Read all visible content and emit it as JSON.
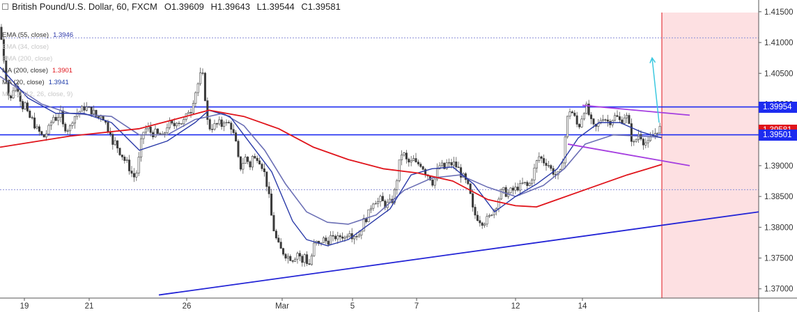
{
  "header": {
    "symbol": "British Pound/U.S. Dollar, 60, FXCM",
    "open": "O1.39609",
    "high": "H1.39643",
    "low": "L1.39544",
    "close": "C1.39581"
  },
  "legend": [
    {
      "name": "EMA (55, close)",
      "value": "1.3946",
      "color": "#2a35a8",
      "faded": false
    },
    {
      "name": "EMA (34, close)",
      "value": "",
      "color": "#cccccc",
      "faded": true
    },
    {
      "name": "EMA (200, close)",
      "value": "",
      "color": "#cccccc",
      "faded": true
    },
    {
      "name": "MA (200, close)",
      "value": "1.3901",
      "color": "#e0141b",
      "faded": false
    },
    {
      "name": "MA (20, close)",
      "value": "1.3941",
      "color": "#1c3aa8",
      "faded": false
    },
    {
      "name": "MACD (12, 26, close, 9)",
      "value": "",
      "color": "#cccccc",
      "faded": true
    }
  ],
  "price_tags": [
    {
      "label": "1.39954",
      "price": 1.39954,
      "color": "#1d2cf0"
    },
    {
      "label": "1.39581",
      "price": 1.39581,
      "color": "#e0141b"
    },
    {
      "label": "1.39501",
      "price": 1.39501,
      "color": "#1d2cf0"
    }
  ],
  "chart_data": {
    "type": "candlestick",
    "ylim": [
      1.3685,
      1.416
    ],
    "y_ticks": [
      "1.41500",
      "1.41000",
      "1.40500",
      "1.40000",
      "1.39500",
      "1.39000",
      "1.38500",
      "1.38000",
      "1.37500",
      "1.37000"
    ],
    "x_ticks": [
      "19",
      "21",
      "26",
      "Mar",
      "5",
      "7",
      "12",
      "14"
    ],
    "horizontal_lines": [
      1.39954,
      1.39501
    ],
    "dotted_levels": [
      1.41075,
      1.3861
    ],
    "close_path": [
      [
        0,
        1.4125
      ],
      [
        3,
        1.4095
      ],
      [
        8,
        1.405
      ],
      [
        14,
        1.4
      ],
      [
        20,
        1.403
      ],
      [
        26,
        1.4025
      ],
      [
        32,
        1.3995
      ],
      [
        36,
        1.4
      ],
      [
        40,
        1.398
      ],
      [
        46,
        1.3975
      ],
      [
        52,
        1.396
      ],
      [
        56,
        1.3955
      ],
      [
        62,
        1.3945
      ],
      [
        68,
        1.3955
      ],
      [
        72,
        1.3965
      ],
      [
        76,
        1.398
      ],
      [
        82,
        1.3975
      ],
      [
        86,
        1.399
      ],
      [
        90,
        1.3965
      ],
      [
        96,
        1.396
      ],
      [
        100,
        1.396
      ],
      [
        104,
        1.3975
      ],
      [
        110,
        1.3985
      ],
      [
        116,
        1.399
      ],
      [
        122,
        1.3995
      ],
      [
        130,
        1.399
      ],
      [
        136,
        1.3985
      ],
      [
        140,
        1.3975
      ],
      [
        144,
        1.3985
      ],
      [
        150,
        1.3975
      ],
      [
        154,
        1.396
      ],
      [
        158,
        1.396
      ],
      [
        162,
        1.393
      ],
      [
        166,
        1.394
      ],
      [
        170,
        1.3925
      ],
      [
        174,
        1.392
      ],
      [
        178,
        1.391
      ],
      [
        182,
        1.3905
      ],
      [
        186,
        1.3895
      ],
      [
        190,
        1.3885
      ],
      [
        194,
        1.388
      ],
      [
        198,
        1.39
      ],
      [
        202,
        1.3935
      ],
      [
        206,
        1.3955
      ],
      [
        210,
        1.396
      ],
      [
        214,
        1.396
      ],
      [
        218,
        1.395
      ],
      [
        222,
        1.3955
      ],
      [
        226,
        1.395
      ],
      [
        230,
        1.395
      ],
      [
        234,
        1.3945
      ],
      [
        238,
        1.396
      ],
      [
        242,
        1.397
      ],
      [
        246,
        1.3965
      ],
      [
        250,
        1.3965
      ],
      [
        254,
        1.3975
      ],
      [
        258,
        1.397
      ],
      [
        262,
        1.397
      ],
      [
        266,
        1.3975
      ],
      [
        270,
        1.399
      ],
      [
        274,
        1.399
      ],
      [
        278,
        1.401
      ],
      [
        282,
        1.4025
      ],
      [
        286,
        1.404
      ],
      [
        290,
        1.4055
      ],
      [
        294,
        1.4015
      ],
      [
        298,
        1.397
      ],
      [
        302,
        1.396
      ],
      [
        306,
        1.3965
      ],
      [
        310,
        1.3965
      ],
      [
        314,
        1.397
      ],
      [
        318,
        1.3965
      ],
      [
        322,
        1.3975
      ],
      [
        326,
        1.3965
      ],
      [
        330,
        1.397
      ],
      [
        334,
        1.3955
      ],
      [
        338,
        1.394
      ],
      [
        342,
        1.391
      ],
      [
        346,
        1.3895
      ],
      [
        350,
        1.391
      ],
      [
        354,
        1.3915
      ],
      [
        358,
        1.3895
      ],
      [
        362,
        1.3915
      ],
      [
        366,
        1.391
      ],
      [
        370,
        1.3915
      ],
      [
        374,
        1.3905
      ],
      [
        378,
        1.3895
      ],
      [
        382,
        1.3875
      ],
      [
        386,
        1.385
      ],
      [
        390,
        1.3815
      ],
      [
        394,
        1.379
      ],
      [
        398,
        1.3775
      ],
      [
        402,
        1.3765
      ],
      [
        406,
        1.376
      ],
      [
        410,
        1.3755
      ],
      [
        414,
        1.3752
      ],
      [
        418,
        1.375
      ],
      [
        422,
        1.3748
      ],
      [
        426,
        1.376
      ],
      [
        430,
        1.3755
      ],
      [
        434,
        1.374
      ],
      [
        438,
        1.376
      ],
      [
        442,
        1.3735
      ],
      [
        446,
        1.3745
      ],
      [
        450,
        1.377
      ],
      [
        454,
        1.3775
      ],
      [
        458,
        1.377
      ],
      [
        462,
        1.378
      ],
      [
        466,
        1.378
      ],
      [
        470,
        1.3775
      ],
      [
        474,
        1.3785
      ],
      [
        478,
        1.378
      ],
      [
        482,
        1.3785
      ],
      [
        486,
        1.378
      ],
      [
        490,
        1.379
      ],
      [
        494,
        1.378
      ],
      [
        498,
        1.379
      ],
      [
        502,
        1.3795
      ],
      [
        506,
        1.3785
      ],
      [
        510,
        1.379
      ],
      [
        514,
        1.3785
      ],
      [
        518,
        1.3795
      ],
      [
        522,
        1.381
      ],
      [
        526,
        1.3815
      ],
      [
        530,
        1.3825
      ],
      [
        534,
        1.384
      ],
      [
        538,
        1.3845
      ],
      [
        542,
        1.384
      ],
      [
        546,
        1.3845
      ],
      [
        550,
        1.384
      ],
      [
        554,
        1.3835
      ],
      [
        558,
        1.384
      ],
      [
        562,
        1.384
      ],
      [
        566,
        1.3855
      ],
      [
        570,
        1.388
      ],
      [
        574,
        1.391
      ],
      [
        578,
        1.3925
      ],
      [
        582,
        1.391
      ],
      [
        586,
        1.3905
      ],
      [
        590,
        1.3905
      ],
      [
        594,
        1.391
      ],
      [
        598,
        1.39
      ],
      [
        602,
        1.3905
      ],
      [
        606,
        1.39
      ],
      [
        610,
        1.389
      ],
      [
        614,
        1.3885
      ],
      [
        618,
        1.388
      ],
      [
        622,
        1.387
      ],
      [
        626,
        1.3885
      ],
      [
        630,
        1.39
      ],
      [
        634,
        1.39
      ],
      [
        638,
        1.3895
      ],
      [
        642,
        1.3905
      ],
      [
        646,
        1.39
      ],
      [
        650,
        1.3905
      ],
      [
        654,
        1.39
      ],
      [
        658,
        1.3895
      ],
      [
        662,
        1.3885
      ],
      [
        666,
        1.388
      ],
      [
        670,
        1.387
      ],
      [
        674,
        1.386
      ],
      [
        678,
        1.383
      ],
      [
        682,
        1.382
      ],
      [
        686,
        1.3815
      ],
      [
        690,
        1.381
      ],
      [
        694,
        1.3808
      ],
      [
        698,
        1.3812
      ],
      [
        702,
        1.3815
      ],
      [
        706,
        1.3825
      ],
      [
        710,
        1.383
      ],
      [
        714,
        1.384
      ],
      [
        718,
        1.3855
      ],
      [
        722,
        1.386
      ],
      [
        726,
        1.3855
      ],
      [
        730,
        1.3855
      ],
      [
        734,
        1.386
      ],
      [
        738,
        1.386
      ],
      [
        742,
        1.3865
      ],
      [
        746,
        1.3865
      ],
      [
        750,
        1.387
      ],
      [
        754,
        1.387
      ],
      [
        758,
        1.3865
      ],
      [
        762,
        1.3875
      ],
      [
        766,
        1.389
      ],
      [
        770,
        1.3905
      ],
      [
        774,
        1.3915
      ],
      [
        778,
        1.391
      ],
      [
        782,
        1.3905
      ],
      [
        786,
        1.3905
      ],
      [
        790,
        1.3895
      ],
      [
        794,
        1.389
      ],
      [
        798,
        1.3885
      ],
      [
        802,
        1.3885
      ],
      [
        806,
        1.389
      ],
      [
        810,
        1.3935
      ],
      [
        814,
        1.3975
      ],
      [
        818,
        1.399
      ],
      [
        822,
        1.3985
      ],
      [
        826,
        1.3975
      ],
      [
        830,
        1.396
      ],
      [
        834,
        1.3975
      ],
      [
        838,
        1.399
      ],
      [
        842,
        1.3995
      ],
      [
        846,
        1.398
      ],
      [
        850,
        1.3965
      ],
      [
        854,
        1.396
      ],
      [
        858,
        1.3965
      ],
      [
        862,
        1.3975
      ],
      [
        866,
        1.398
      ],
      [
        870,
        1.3975
      ],
      [
        874,
        1.397
      ],
      [
        878,
        1.3975
      ],
      [
        882,
        1.398
      ],
      [
        886,
        1.3978
      ],
      [
        890,
        1.3972
      ],
      [
        894,
        1.3975
      ],
      [
        898,
        1.3985
      ],
      [
        902,
        1.397
      ],
      [
        906,
        1.3945
      ],
      [
        910,
        1.3935
      ],
      [
        914,
        1.3945
      ],
      [
        918,
        1.3955
      ],
      [
        922,
        1.394
      ],
      [
        926,
        1.3938
      ],
      [
        930,
        1.3935
      ],
      [
        934,
        1.3945
      ],
      [
        938,
        1.395
      ],
      [
        942,
        1.3955
      ],
      [
        946,
        1.3962
      ],
      [
        950,
        1.3958
      ]
    ],
    "ma200_path": [
      [
        0,
        1.393
      ],
      [
        100,
        1.3948
      ],
      [
        200,
        1.396
      ],
      [
        250,
        1.3975
      ],
      [
        300,
        1.399
      ],
      [
        350,
        1.398
      ],
      [
        400,
        1.396
      ],
      [
        450,
        1.393
      ],
      [
        500,
        1.391
      ],
      [
        550,
        1.3895
      ],
      [
        600,
        1.3888
      ],
      [
        650,
        1.3875
      ],
      [
        700,
        1.3845
      ],
      [
        740,
        1.3835
      ],
      [
        770,
        1.3833
      ],
      [
        800,
        1.3845
      ],
      [
        850,
        1.3865
      ],
      [
        900,
        1.3885
      ],
      [
        930,
        1.3895
      ],
      [
        950,
        1.3902
      ]
    ],
    "ma20_path": [
      [
        0,
        1.406
      ],
      [
        40,
        1.401
      ],
      [
        80,
        1.3985
      ],
      [
        120,
        1.3985
      ],
      [
        160,
        1.397
      ],
      [
        200,
        1.3925
      ],
      [
        240,
        1.394
      ],
      [
        280,
        1.397
      ],
      [
        300,
        1.399
      ],
      [
        330,
        1.398
      ],
      [
        360,
        1.3935
      ],
      [
        390,
        1.389
      ],
      [
        420,
        1.381
      ],
      [
        440,
        1.378
      ],
      [
        470,
        1.377
      ],
      [
        500,
        1.378
      ],
      [
        530,
        1.3805
      ],
      [
        560,
        1.383
      ],
      [
        590,
        1.3885
      ],
      [
        620,
        1.3895
      ],
      [
        650,
        1.3898
      ],
      [
        680,
        1.387
      ],
      [
        710,
        1.3825
      ],
      [
        740,
        1.385
      ],
      [
        770,
        1.387
      ],
      [
        800,
        1.3895
      ],
      [
        830,
        1.3945
      ],
      [
        860,
        1.397
      ],
      [
        890,
        1.397
      ],
      [
        920,
        1.3955
      ],
      [
        950,
        1.3945
      ]
    ],
    "ema55_path": [
      [
        0,
        1.4045
      ],
      [
        60,
        1.4
      ],
      [
        100,
        1.3985
      ],
      [
        160,
        1.398
      ],
      [
        200,
        1.395
      ],
      [
        240,
        1.395
      ],
      [
        280,
        1.3975
      ],
      [
        320,
        1.3985
      ],
      [
        350,
        1.3965
      ],
      [
        380,
        1.3925
      ],
      [
        410,
        1.387
      ],
      [
        440,
        1.3825
      ],
      [
        470,
        1.3808
      ],
      [
        500,
        1.3805
      ],
      [
        540,
        1.382
      ],
      [
        580,
        1.386
      ],
      [
        620,
        1.388
      ],
      [
        660,
        1.3885
      ],
      [
        700,
        1.3865
      ],
      [
        740,
        1.385
      ],
      [
        780,
        1.3868
      ],
      [
        810,
        1.3895
      ],
      [
        840,
        1.3935
      ],
      [
        880,
        1.395
      ],
      [
        920,
        1.3948
      ],
      [
        950,
        1.3946
      ]
    ],
    "trend_lines": [
      {
        "from": [
          228,
          1.369
        ],
        "to": [
          1089,
          1.3825
        ],
        "color": "#2324d6"
      },
      {
        "from": [
          836,
          1.3998
        ],
        "to": [
          990,
          1.3982
        ],
        "color": "#a53ee0"
      },
      {
        "from": [
          815,
          1.3935
        ],
        "to": [
          990,
          1.39
        ],
        "color": "#a53ee0"
      }
    ],
    "arrow": {
      "from": [
        946,
        1.397
      ],
      "to": [
        936,
        1.4075
      ],
      "color": "#3cc8e0"
    },
    "future_zone_start_x": 950
  }
}
